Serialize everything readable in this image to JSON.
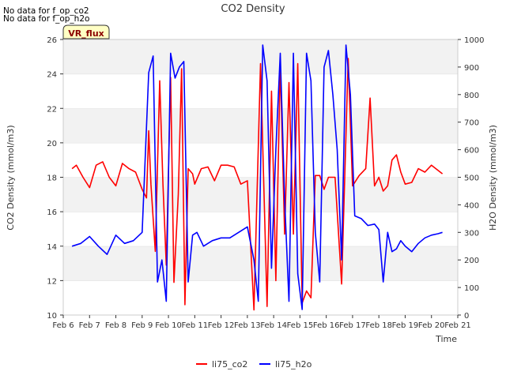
{
  "status_messages": [
    "No data for f_op_co2",
    "No data for f_op_h2o"
  ],
  "badge": "VR_flux",
  "chart_data": {
    "type": "line",
    "title": "CO2 Density",
    "xlabel": "Time",
    "ylabel": "CO2 Density (mmol/m3)",
    "y2label": "H2O Density (mmol/m3)",
    "x_range": [
      "2024-02-06",
      "2024-02-21"
    ],
    "ylim": [
      10,
      26
    ],
    "y2lim": [
      0,
      1000
    ],
    "xticks": [
      "Feb 6",
      "Feb 7",
      "Feb 8",
      "Feb 9",
      "Feb 10",
      "Feb 11",
      "Feb 12",
      "Feb 13",
      "Feb 14",
      "Feb 15",
      "Feb 16",
      "Feb 17",
      "Feb 18",
      "Feb 19",
      "Feb 20",
      "Feb 21"
    ],
    "yticks": [
      10,
      12,
      14,
      16,
      18,
      20,
      22,
      24,
      26
    ],
    "y2ticks": [
      0,
      100,
      200,
      300,
      400,
      500,
      600,
      700,
      800,
      900,
      1000
    ],
    "grid": "horizontal bands",
    "legend_position": "bottom",
    "series": [
      {
        "name": "li75_co2",
        "color": "#ff0000",
        "axis": "left",
        "x": [
          "2024-02-06T08:00",
          "2024-02-06T12:00",
          "2024-02-06T18:00",
          "2024-02-07T00:00",
          "2024-02-07T06:00",
          "2024-02-07T12:00",
          "2024-02-07T18:00",
          "2024-02-08T00:00",
          "2024-02-08T06:00",
          "2024-02-08T12:00",
          "2024-02-08T18:00",
          "2024-02-09T00:00",
          "2024-02-09T04:00",
          "2024-02-09T06:00",
          "2024-02-09T08:00",
          "2024-02-09T12:00",
          "2024-02-09T16:00",
          "2024-02-09T19:00",
          "2024-02-09T22:00",
          "2024-02-10T02:00",
          "2024-02-10T05:00",
          "2024-02-10T09:00",
          "2024-02-10T12:00",
          "2024-02-10T15:00",
          "2024-02-10T18:00",
          "2024-02-10T22:00",
          "2024-02-11T00:00",
          "2024-02-11T06:00",
          "2024-02-11T12:00",
          "2024-02-11T18:00",
          "2024-02-12T00:00",
          "2024-02-12T06:00",
          "2024-02-12T12:00",
          "2024-02-12T18:00",
          "2024-02-13T00:00",
          "2024-02-13T06:00",
          "2024-02-13T12:00",
          "2024-02-13T18:00",
          "2024-02-13T22:00",
          "2024-02-14T02:00",
          "2024-02-14T06:00",
          "2024-02-14T10:00",
          "2024-02-14T14:00",
          "2024-02-14T18:00",
          "2024-02-14T22:00",
          "2024-02-15T02:00",
          "2024-02-15T06:00",
          "2024-02-15T10:00",
          "2024-02-15T14:00",
          "2024-02-15T18:00",
          "2024-02-15T22:00",
          "2024-02-16T02:00",
          "2024-02-16T08:00",
          "2024-02-16T14:00",
          "2024-02-16T20:00",
          "2024-02-17T00:00",
          "2024-02-17T06:00",
          "2024-02-17T12:00",
          "2024-02-17T16:00",
          "2024-02-17T20:00",
          "2024-02-18T00:00",
          "2024-02-18T04:00",
          "2024-02-18T08:00",
          "2024-02-18T12:00",
          "2024-02-18T16:00",
          "2024-02-18T20:00",
          "2024-02-19T00:00",
          "2024-02-19T06:00",
          "2024-02-19T12:00",
          "2024-02-19T18:00",
          "2024-02-20T00:00",
          "2024-02-20T06:00",
          "2024-02-20T10:00"
        ],
        "y": [
          18.5,
          18.7,
          18.0,
          17.4,
          18.7,
          18.9,
          18.0,
          17.5,
          18.8,
          18.5,
          18.3,
          17.3,
          16.8,
          20.7,
          17.6,
          13.7,
          23.6,
          17.6,
          12.9,
          23.8,
          11.9,
          17.0,
          24.3,
          10.6,
          18.5,
          18.2,
          17.6,
          18.5,
          18.6,
          17.8,
          18.7,
          18.7,
          18.6,
          17.6,
          17.8,
          10.3,
          24.6,
          10.5,
          23.0,
          12.0,
          24.6,
          14.7,
          23.5,
          14.7,
          24.6,
          10.7,
          11.4,
          11.0,
          18.1,
          18.1,
          17.3,
          18.0,
          18.0,
          11.8,
          24.9,
          17.5,
          18.1,
          18.5,
          22.6,
          17.5,
          18.0,
          17.2,
          17.5,
          19.0,
          19.3,
          18.3,
          17.6,
          17.7,
          18.5,
          18.3,
          18.7,
          18.4,
          18.2
        ]
      },
      {
        "name": "li75_h2o",
        "color": "#0000ff",
        "axis": "right",
        "x": [
          "2024-02-06T08:00",
          "2024-02-06T16:00",
          "2024-02-07T00:00",
          "2024-02-07T08:00",
          "2024-02-07T16:00",
          "2024-02-08T00:00",
          "2024-02-08T08:00",
          "2024-02-08T16:00",
          "2024-02-09T00:00",
          "2024-02-09T06:00",
          "2024-02-09T10:00",
          "2024-02-09T14:00",
          "2024-02-09T18:00",
          "2024-02-09T22:00",
          "2024-02-10T02:00",
          "2024-02-10T06:00",
          "2024-02-10T10:00",
          "2024-02-10T14:00",
          "2024-02-10T18:00",
          "2024-02-10T22:00",
          "2024-02-11T02:00",
          "2024-02-11T08:00",
          "2024-02-11T16:00",
          "2024-02-12T00:00",
          "2024-02-12T08:00",
          "2024-02-12T16:00",
          "2024-02-13T00:00",
          "2024-02-13T06:00",
          "2024-02-13T10:00",
          "2024-02-13T14:00",
          "2024-02-13T18:00",
          "2024-02-13T22:00",
          "2024-02-14T02:00",
          "2024-02-14T06:00",
          "2024-02-14T10:00",
          "2024-02-14T14:00",
          "2024-02-14T18:00",
          "2024-02-14T22:00",
          "2024-02-15T02:00",
          "2024-02-15T06:00",
          "2024-02-15T10:00",
          "2024-02-15T14:00",
          "2024-02-15T18:00",
          "2024-02-15T22:00",
          "2024-02-16T02:00",
          "2024-02-16T06:00",
          "2024-02-16T10:00",
          "2024-02-16T14:00",
          "2024-02-16T18:00",
          "2024-02-16T22:00",
          "2024-02-17T02:00",
          "2024-02-17T08:00",
          "2024-02-17T14:00",
          "2024-02-17T20:00",
          "2024-02-18T00:00",
          "2024-02-18T04:00",
          "2024-02-18T08:00",
          "2024-02-18T12:00",
          "2024-02-18T16:00",
          "2024-02-18T20:00",
          "2024-02-19T00:00",
          "2024-02-19T06:00",
          "2024-02-19T12:00",
          "2024-02-19T18:00",
          "2024-02-20T00:00",
          "2024-02-20T06:00",
          "2024-02-20T10:00"
        ],
        "y": [
          250,
          260,
          285,
          250,
          220,
          290,
          260,
          270,
          300,
          880,
          940,
          120,
          200,
          50,
          950,
          860,
          900,
          920,
          120,
          290,
          300,
          250,
          270,
          280,
          280,
          300,
          320,
          200,
          50,
          980,
          850,
          170,
          600,
          950,
          420,
          50,
          950,
          150,
          20,
          950,
          850,
          300,
          120,
          900,
          960,
          800,
          600,
          200,
          980,
          800,
          360,
          350,
          325,
          330,
          310,
          120,
          300,
          230,
          240,
          270,
          250,
          230,
          260,
          280,
          290,
          295,
          300
        ]
      }
    ]
  }
}
